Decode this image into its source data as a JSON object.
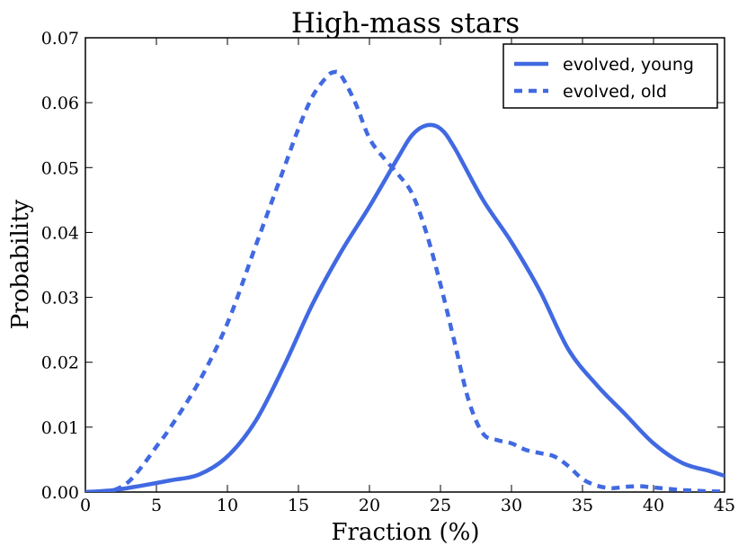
{
  "chart_data": {
    "type": "line",
    "title": "High-mass stars",
    "xlabel": "Fraction (%)",
    "ylabel": "Probability",
    "xlim": [
      0,
      45
    ],
    "ylim": [
      0,
      0.07
    ],
    "grid": false,
    "legend_position": "top-right",
    "x_ticks": [
      0,
      5,
      10,
      15,
      20,
      25,
      30,
      35,
      40,
      45
    ],
    "x_tick_labels": [
      "0",
      "5",
      "10",
      "15",
      "20",
      "25",
      "30",
      "35",
      "40",
      "45"
    ],
    "y_ticks": [
      0,
      0.01,
      0.02,
      0.03,
      0.04,
      0.05,
      0.06,
      0.07
    ],
    "y_tick_labels": [
      "0.00",
      "0.01",
      "0.02",
      "0.03",
      "0.04",
      "0.05",
      "0.06",
      "0.07"
    ],
    "series": [
      {
        "name": "evolved, young",
        "style": "solid",
        "color": "#4169E1",
        "x": [
          0,
          2,
          4,
          6,
          8,
          10,
          12,
          14,
          16,
          18,
          20,
          22,
          23,
          24,
          25,
          26,
          28,
          30,
          32,
          34,
          36,
          38,
          40,
          42,
          44,
          45
        ],
        "y": [
          0.0,
          0.0003,
          0.001,
          0.0018,
          0.0027,
          0.0055,
          0.011,
          0.0195,
          0.029,
          0.037,
          0.044,
          0.0515,
          0.055,
          0.0565,
          0.056,
          0.053,
          0.045,
          0.0385,
          0.031,
          0.022,
          0.0165,
          0.012,
          0.0075,
          0.0045,
          0.0032,
          0.0025
        ]
      },
      {
        "name": "evolved, old",
        "style": "dashed",
        "color": "#4169E1",
        "x": [
          0,
          1,
          2,
          3,
          4,
          5,
          6,
          8,
          10,
          12,
          14,
          15,
          16,
          17,
          17.5,
          18,
          19,
          20,
          21,
          22,
          23,
          24,
          25,
          26,
          27,
          28,
          29,
          30,
          31,
          32,
          33,
          34,
          35,
          36,
          37,
          38,
          39,
          40,
          41,
          42,
          43,
          44,
          45
        ],
        "y": [
          0.0,
          0.0,
          0.0003,
          0.0015,
          0.004,
          0.007,
          0.01,
          0.017,
          0.026,
          0.038,
          0.05,
          0.056,
          0.061,
          0.064,
          0.0647,
          0.0642,
          0.06,
          0.0545,
          0.0515,
          0.049,
          0.046,
          0.04,
          0.032,
          0.023,
          0.014,
          0.009,
          0.008,
          0.0075,
          0.0065,
          0.006,
          0.0055,
          0.004,
          0.002,
          0.001,
          0.0006,
          0.0008,
          0.0009,
          0.0007,
          0.0005,
          0.0003,
          0.0002,
          0.0001,
          0.0001
        ]
      }
    ]
  }
}
